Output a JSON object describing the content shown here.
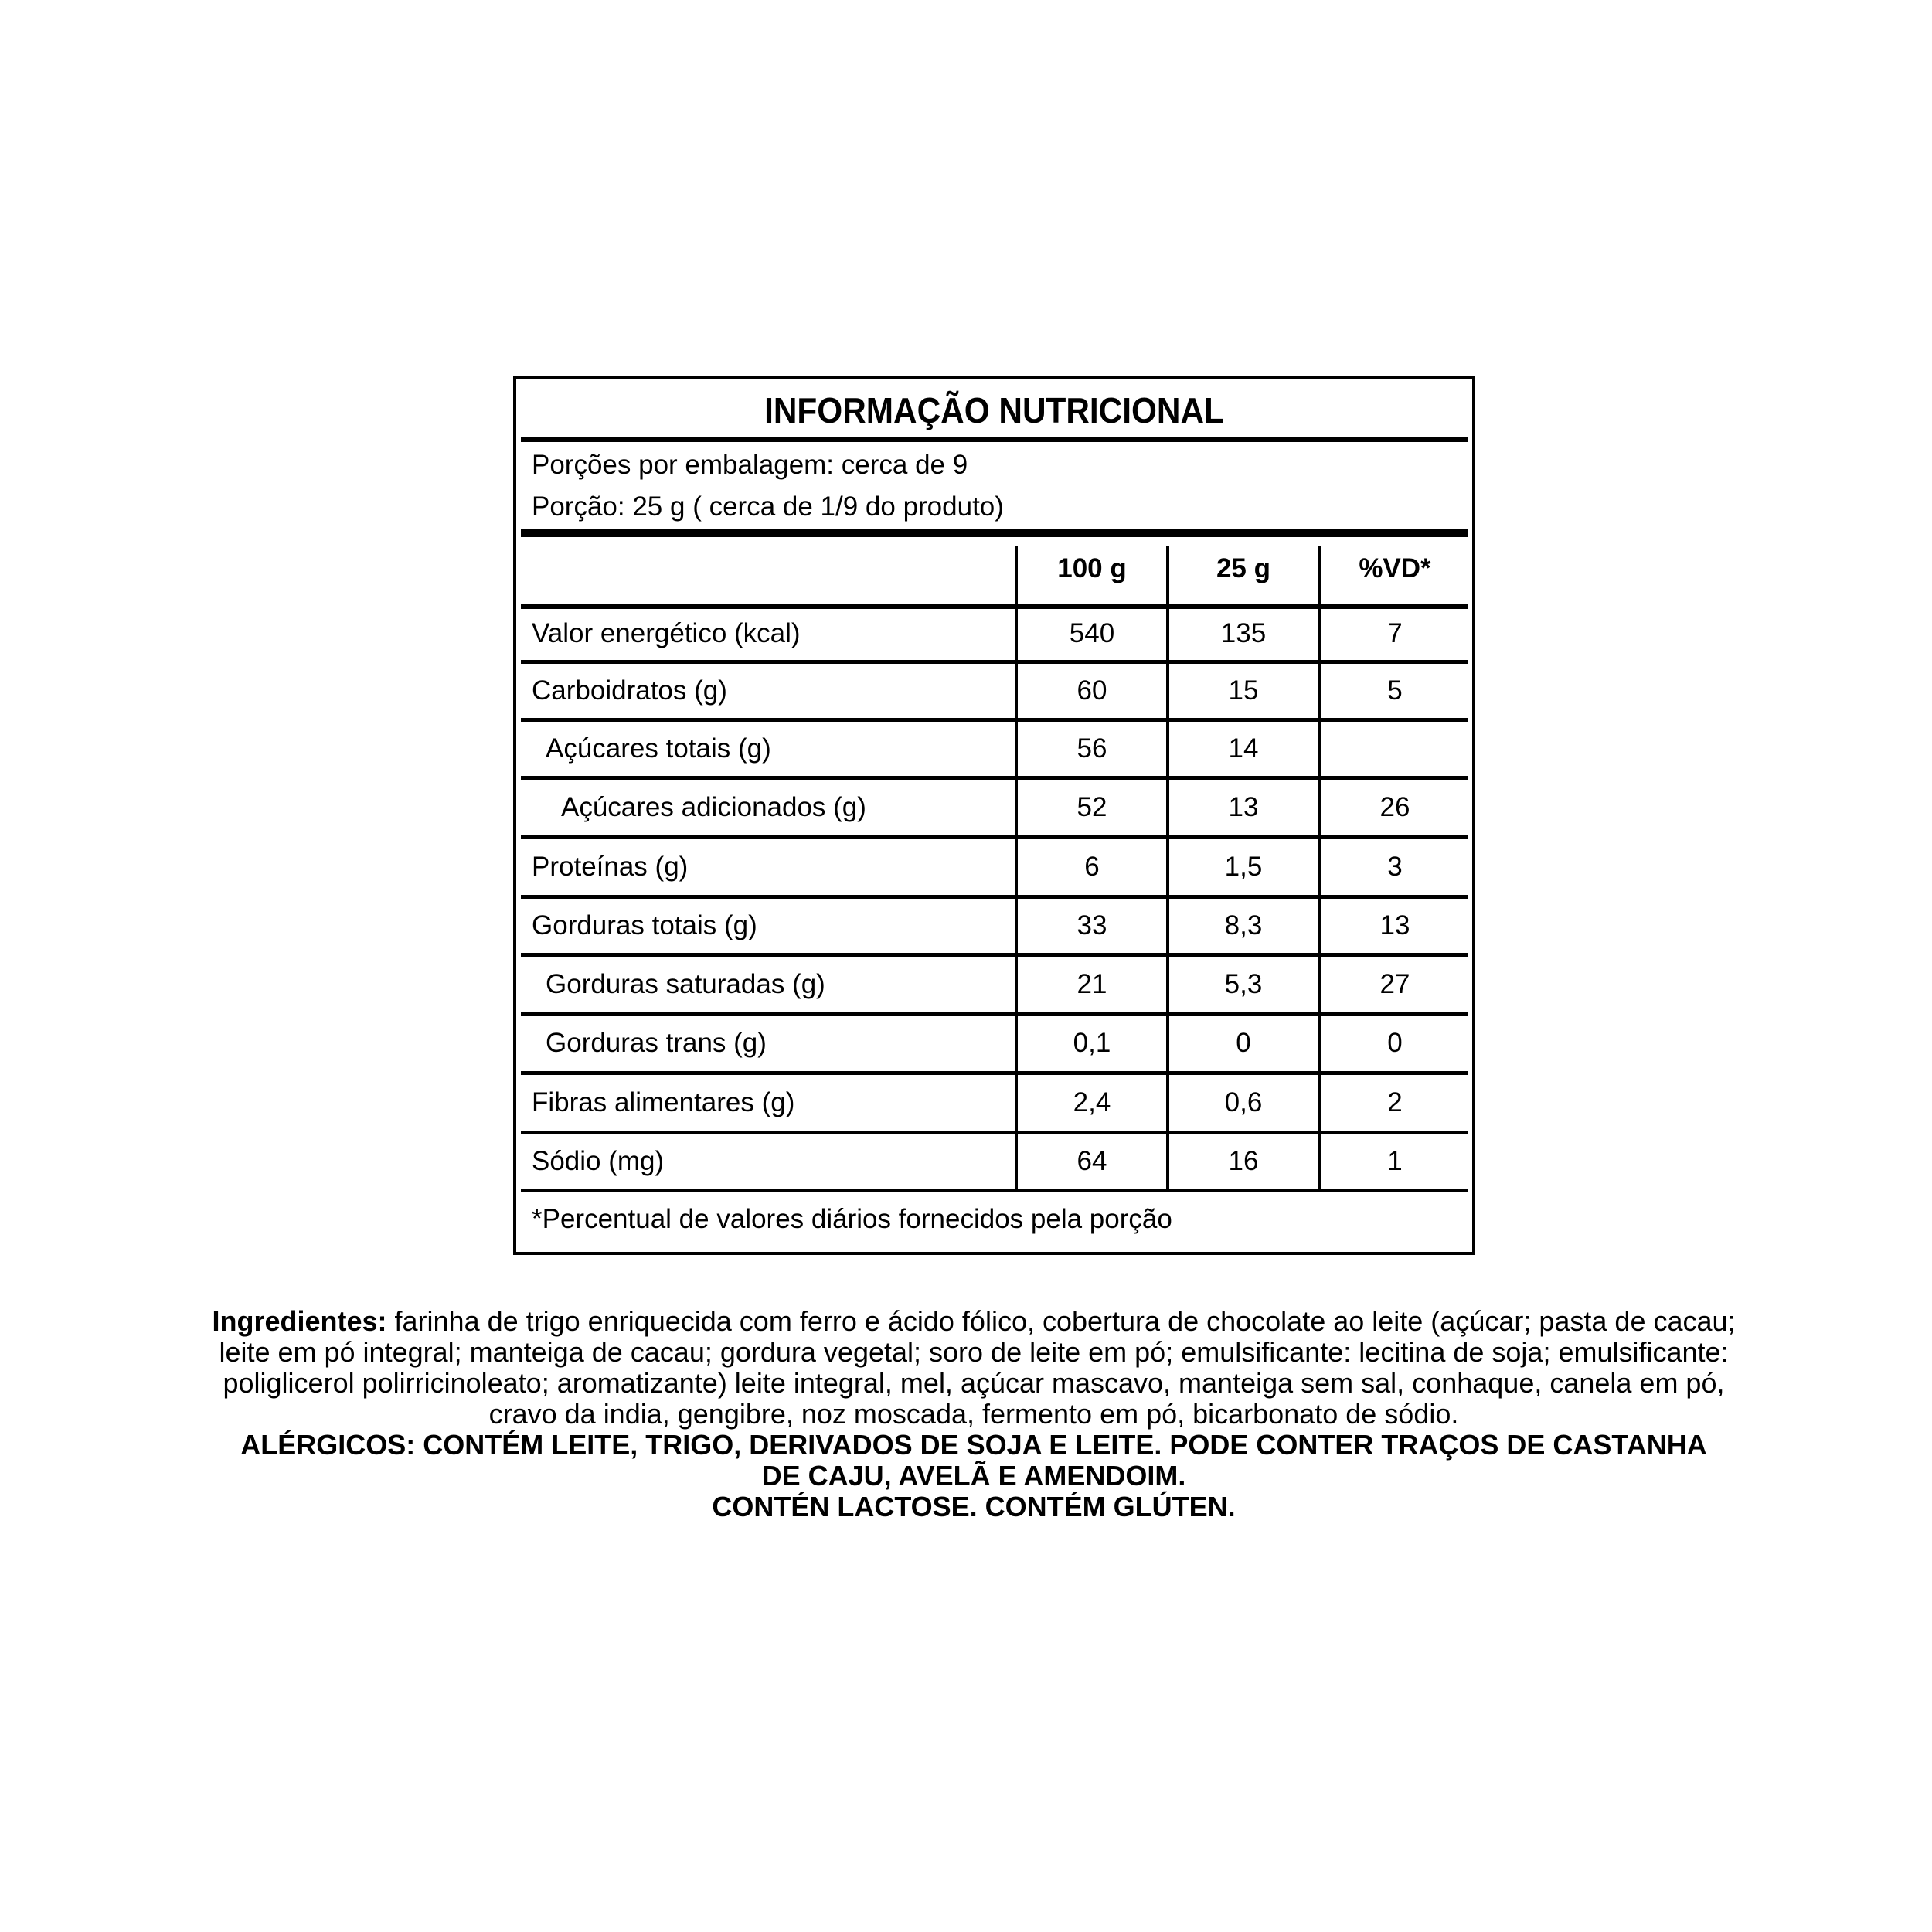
{
  "label": {
    "title": "INFORMAÇÃO NUTRICIONAL",
    "servings_per_package": "Porções por embalagem:  cerca de 9",
    "serving_size": "Porção: 25 g ( cerca de 1/9 do produto)",
    "columns": [
      "100 g",
      "25 g",
      "%VD*"
    ],
    "rows": [
      {
        "name": "Valor energético (kcal)",
        "indent": 0,
        "values": [
          "540",
          "135",
          "7"
        ]
      },
      {
        "name": "Carboidratos (g)",
        "indent": 0,
        "values": [
          "60",
          "15",
          "5"
        ]
      },
      {
        "name": "Açúcares totais (g)",
        "indent": 1,
        "values": [
          "56",
          "14",
          ""
        ]
      },
      {
        "name": "Açúcares adicionados (g)",
        "indent": 2,
        "values": [
          "52",
          "13",
          "26"
        ]
      },
      {
        "name": "Proteínas (g)",
        "indent": 0,
        "values": [
          "6",
          "1,5",
          "3"
        ]
      },
      {
        "name": "Gorduras totais (g)",
        "indent": 0,
        "values": [
          "33",
          "8,3",
          "13"
        ]
      },
      {
        "name": "Gorduras saturadas (g)",
        "indent": 1,
        "values": [
          "21",
          "5,3",
          "27"
        ]
      },
      {
        "name": "Gorduras trans (g)",
        "indent": 1,
        "values": [
          "0,1",
          "0",
          "0"
        ]
      },
      {
        "name": "Fibras alimentares (g)",
        "indent": 0,
        "values": [
          "2,4",
          "0,6",
          "2"
        ]
      },
      {
        "name": "Sódio (mg)",
        "indent": 0,
        "values": [
          "64",
          "16",
          "1"
        ]
      }
    ],
    "footnote": "*Percentual de valores diários fornecidos pela porção"
  },
  "ingredients": {
    "heading": "Ingredientes:",
    "lines": [
      " farinha de trigo enriquecida com ferro e ácido fólico, cobertura de chocolate ao leite (açúcar; pasta de cacau;",
      "leite em pó integral; manteiga de cacau; gordura vegetal; soro de leite em pó; emulsificante: lecitina de soja; emulsificante:",
      "poliglicerol polirricinoleato; aromatizante) leite integral, mel, açúcar mascavo, manteiga sem sal, conhaque, canela em pó,",
      "cravo da india, gengibre, noz moscada, fermento em pó, bicarbonato de sódio."
    ],
    "allergens": [
      "ALÉRGICOS: CONTÉM LEITE, TRIGO, DERIVADOS DE SOJA E LEITE. PODE CONTER TRAÇOS DE CASTANHA",
      "DE CAJU, AVELÃ E AMENDOIM.",
      "CONTÉN LACTOSE. CONTÉM GLÚTEN."
    ]
  }
}
